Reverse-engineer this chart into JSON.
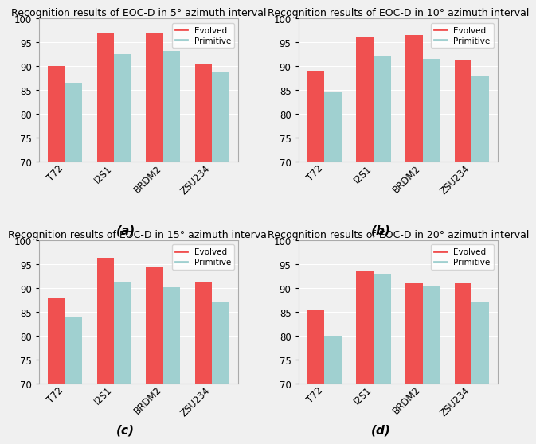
{
  "subplots": [
    {
      "title": "Recognition results of EOC-D in 5° azimuth interval",
      "label": "(a)",
      "categories": [
        "T72",
        "I2S1",
        "BRDM2",
        "ZSU234"
      ],
      "evolved": [
        90.0,
        97.0,
        97.0,
        90.5
      ],
      "primitive": [
        86.5,
        92.5,
        93.3,
        88.8
      ]
    },
    {
      "title": "Recognition results of EOC-D in 10° azimuth interval",
      "label": "(b)",
      "categories": [
        "T72",
        "I2S1",
        "BRDM2",
        "ZSU234"
      ],
      "evolved": [
        89.0,
        96.0,
        96.5,
        91.2
      ],
      "primitive": [
        84.7,
        92.2,
        91.5,
        88.0
      ]
    },
    {
      "title": "Recognition results of EOC-D in 15° azimuth interval",
      "label": "(c)",
      "categories": [
        "T72",
        "I2S1",
        "BRDM2",
        "ZSU234"
      ],
      "evolved": [
        88.0,
        96.4,
        94.5,
        91.1
      ],
      "primitive": [
        83.8,
        91.2,
        90.1,
        87.2
      ]
    },
    {
      "title": "Recognition results of EOC-D in 20° azimuth interval",
      "label": "(d)",
      "categories": [
        "T72",
        "I2S1",
        "BRDM2",
        "ZSU234"
      ],
      "evolved": [
        85.5,
        93.5,
        91.0,
        91.0
      ],
      "primitive": [
        80.0,
        93.0,
        90.5,
        87.0
      ]
    }
  ],
  "ylim": [
    70,
    100
  ],
  "yticks": [
    70,
    75,
    80,
    85,
    90,
    95,
    100
  ],
  "evolved_color": "#f05050",
  "primitive_color": "#a0d0d0",
  "bar_width": 0.35,
  "legend_evolved": "Evolved",
  "legend_primitive": "Primitive",
  "title_fontsize": 9.0,
  "tick_fontsize": 8.5,
  "label_fontsize": 11,
  "background_color": "#f0f0f0"
}
